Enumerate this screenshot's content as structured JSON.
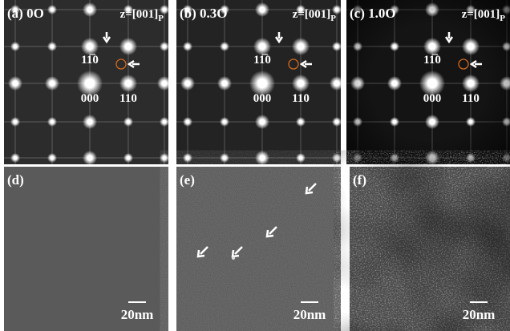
{
  "panels": [
    {
      "label": "(a) 0O",
      "zone": "z=[001]",
      "zone_sub": "P",
      "spots": [
        "11̅0",
        "000",
        "110"
      ]
    },
    {
      "label": "(b) 0.3O",
      "zone": "z=[001]",
      "zone_sub": "P",
      "spots": [
        "11̅0",
        "000",
        "110"
      ]
    },
    {
      "label": "(c) 1.0O",
      "zone": "z=[001]",
      "zone_sub": "P",
      "spots": [
        "11̅0",
        "000",
        "110"
      ]
    }
  ],
  "images": [
    {
      "label": "(d)",
      "scale": "20nm"
    },
    {
      "label": "(e)",
      "scale": "20nm"
    },
    {
      "label": "(f)",
      "scale": "20nm"
    }
  ]
}
